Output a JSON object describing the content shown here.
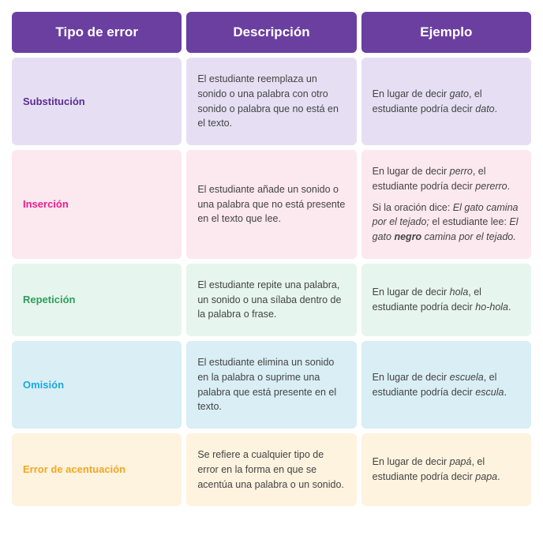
{
  "headers": [
    "Tipo de error",
    "Descripción",
    "Ejemplo"
  ],
  "header_bg": "#6b3fa0",
  "header_text_color": "#ffffff",
  "rows": [
    {
      "type": "Substitución",
      "type_color": "#5a2d91",
      "bg": "#e6dff4",
      "desc": "El estudiante reemplaza un sonido o una palabra con otro sonido o palabra que no está en el texto.",
      "examples": [
        {
          "pre": "En lugar de decir ",
          "it1": "gato",
          "mid": ", el estudiante podría decir ",
          "it2": "dato",
          "post": "."
        }
      ]
    },
    {
      "type": "Inserción",
      "type_color": "#e91e8c",
      "bg": "#fce8ef",
      "desc": "El estudiante añade un sonido o una palabra que no está presente en el texto que lee.",
      "examples": [
        {
          "pre": "En lugar de decir ",
          "it1": "perro",
          "mid": ", el estudiante podría decir ",
          "it2": "pererro",
          "post": "."
        },
        {
          "pre": "Si la oración dice: ",
          "it1": "El gato camina por el tejado;",
          "mid": " el estudiante lee: ",
          "it2": "El gato ",
          "bold": "negro",
          "it3": " camina por el tejado.",
          "post": ""
        }
      ]
    },
    {
      "type": "Repetición",
      "type_color": "#2e9e5b",
      "bg": "#e6f5ed",
      "desc": "El estudiante repite una palabra, un sonido o una sílaba dentro de la palabra o frase.",
      "examples": [
        {
          "pre": "En lugar de decir ",
          "it1": "hola",
          "mid": ", el estudiante podría decir ",
          "it2": "ho-hola",
          "post": "."
        }
      ]
    },
    {
      "type": "Omisión",
      "type_color": "#1ba8e0",
      "bg": "#d9eef5",
      "desc": "El estudiante elimina un sonido en la palabra o suprime una palabra que está presente en el texto.",
      "examples": [
        {
          "pre": "En lugar de decir ",
          "it1": "escuela",
          "mid": ", el estudiante podría decir ",
          "it2": "escula",
          "post": "."
        }
      ]
    },
    {
      "type": "Error de acentuación",
      "type_color": "#f5a623",
      "bg": "#fdf3df",
      "desc": "Se refiere a cualquier tipo de error en la forma en que se acentúa una palabra o un sonido.",
      "examples": [
        {
          "pre": "En lugar de decir ",
          "it1": "papá",
          "mid": ", el estudiante podría decir ",
          "it2": "papa",
          "post": "."
        }
      ]
    }
  ]
}
